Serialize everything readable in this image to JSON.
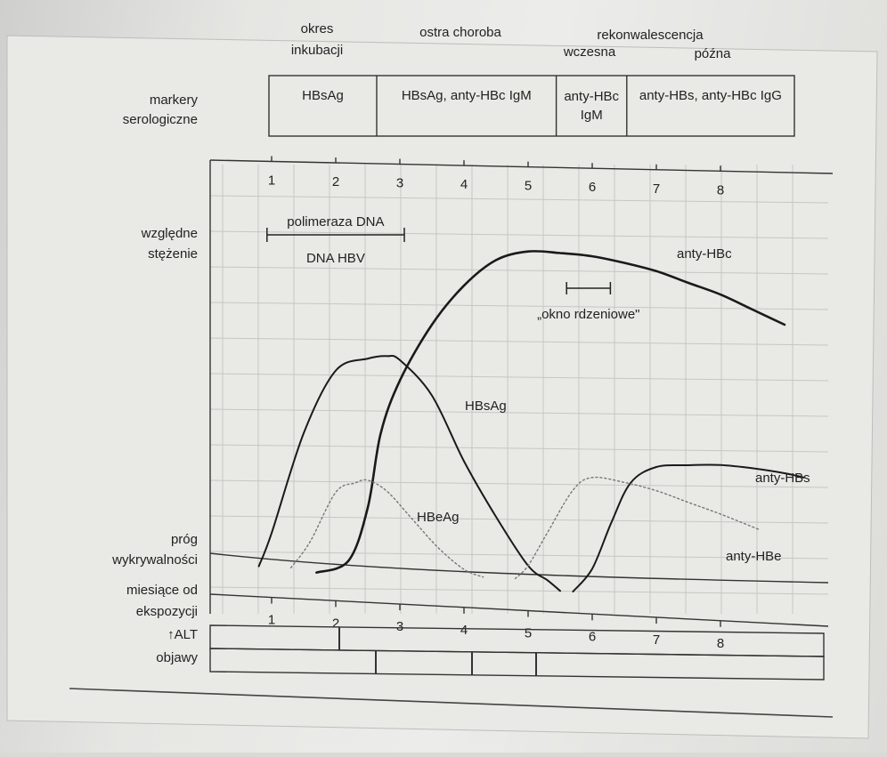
{
  "chart_data": {
    "type": "line",
    "xlabel": "miesiące od ekspozycji",
    "ylabel": "względne stężenie",
    "ticks": [
      1,
      2,
      3,
      4,
      5,
      6,
      7,
      8
    ],
    "xlim": [
      0.1,
      9.4
    ],
    "ylim": [
      0,
      100
    ],
    "threshold_label": "próg wykrywalności",
    "phases": {
      "incubation": "okres inkubacji",
      "acute": "ostra choroba",
      "convalescence": "rekonwalescencja",
      "early": "wczesna",
      "late": "późna"
    },
    "markers_label": "markery serologiczne",
    "markers": [
      {
        "text": "HBsAg",
        "from": 0.1,
        "to": 2.5
      },
      {
        "text": "HBsAg, anty-HBc IgM",
        "from": 2.5,
        "to": 5.3
      },
      {
        "text": "anty-HBc IgM",
        "from": 5.3,
        "to": 6.4
      },
      {
        "text": "anty-HBs, anty-HBc IgG",
        "from": 6.4,
        "to": 9.1
      }
    ],
    "dna": {
      "label_top": "polimeraza DNA",
      "label_bottom": "DNA HBV",
      "from": 0.9,
      "to": 3.0
    },
    "window": {
      "label": "„okno rdzeniowe\"",
      "from": 5.6,
      "to": 6.2
    },
    "series": [
      {
        "name": "anty-HBc",
        "style": "solid",
        "x": [
          1.7,
          2.2,
          2.5,
          2.7,
          3.0,
          3.5,
          4.0,
          4.5,
          5.0,
          5.5,
          6.0,
          6.5,
          7.0,
          7.5,
          8.0,
          8.5,
          9.0
        ],
        "y": [
          0,
          4,
          20,
          42,
          58,
          75,
          87,
          95,
          98,
          98,
          97.5,
          96,
          94,
          91,
          88,
          84,
          80
        ]
      },
      {
        "name": "HBsAg",
        "style": "solid",
        "x": [
          0.8,
          1.0,
          1.5,
          2.0,
          2.5,
          2.8,
          3.0,
          3.5,
          4.0,
          4.5,
          5.0,
          5.3,
          5.5
        ],
        "y": [
          0,
          10,
          40,
          59,
          63,
          64,
          63,
          53,
          34,
          18,
          4,
          0,
          -3
        ]
      },
      {
        "name": "HBeAg",
        "style": "dotted",
        "x": [
          1.3,
          1.6,
          2.0,
          2.3,
          2.5,
          2.8,
          3.2,
          3.6,
          4.0,
          4.3
        ],
        "y": [
          0,
          8,
          23,
          26,
          27,
          24,
          16,
          8,
          2,
          0
        ]
      },
      {
        "name": "anty-HBs",
        "style": "solid",
        "x": [
          5.7,
          6.0,
          6.3,
          6.6,
          7.0,
          7.5,
          8.0,
          8.5,
          9.0,
          9.3
        ],
        "y": [
          -3,
          4,
          18,
          30,
          35,
          36,
          36.5,
          36,
          35,
          34
        ]
      },
      {
        "name": "anty-HBe",
        "style": "dotted",
        "x": [
          4.8,
          5.0,
          5.3,
          5.7,
          6.0,
          6.5,
          7.0,
          7.5,
          8.0,
          8.6
        ],
        "y": [
          0,
          4,
          14,
          27,
          31,
          30,
          28,
          25,
          22,
          18
        ]
      }
    ],
    "bottom_rows": {
      "alt": "↑ALT",
      "symptoms": "objawy",
      "alt_segments_x": [
        2.0
      ],
      "symptom_segments_x": [
        2.5,
        4.0,
        5.0
      ]
    }
  }
}
